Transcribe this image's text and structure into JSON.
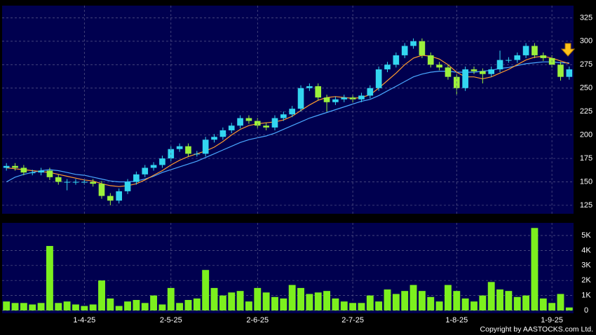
{
  "chart_data": [
    {
      "type": "candlestick",
      "open": [
        165,
        167,
        165,
        160,
        160,
        162,
        155,
        150,
        150,
        150,
        150,
        148,
        135,
        130,
        140,
        150,
        158,
        165,
        168,
        175,
        185,
        188,
        180,
        180,
        195,
        198,
        205,
        210,
        218,
        215,
        210,
        208,
        218,
        222,
        228,
        250,
        252,
        240,
        235,
        238,
        240,
        238,
        242,
        250,
        270,
        275,
        285,
        295,
        300,
        285,
        275,
        272,
        262,
        250,
        270,
        268,
        265,
        270,
        280,
        280,
        285,
        295,
        285,
        282,
        275,
        262
      ],
      "high": [
        170,
        170,
        168,
        163,
        165,
        165,
        158,
        153,
        153,
        153,
        153,
        151,
        138,
        143,
        153,
        161,
        168,
        171,
        178,
        188,
        191,
        191,
        183,
        198,
        201,
        208,
        213,
        221,
        221,
        218,
        213,
        221,
        225,
        231,
        253,
        255,
        255,
        243,
        241,
        243,
        243,
        245,
        253,
        273,
        278,
        288,
        298,
        303,
        303,
        288,
        278,
        275,
        265,
        273,
        273,
        271,
        273,
        290,
        283,
        288,
        298,
        298,
        288,
        285,
        278,
        273
      ],
      "low": [
        162,
        162,
        157,
        157,
        157,
        152,
        147,
        141,
        147,
        147,
        145,
        132,
        125,
        127,
        137,
        147,
        155,
        162,
        165,
        172,
        182,
        177,
        177,
        177,
        192,
        195,
        202,
        207,
        212,
        207,
        205,
        205,
        215,
        219,
        225,
        247,
        237,
        225,
        232,
        235,
        235,
        235,
        239,
        247,
        267,
        272,
        282,
        292,
        282,
        272,
        269,
        259,
        243,
        247,
        265,
        255,
        262,
        267,
        277,
        277,
        282,
        282,
        279,
        272,
        258,
        259
      ],
      "close": [
        167,
        165,
        160,
        160,
        162,
        155,
        150,
        150,
        150,
        150,
        148,
        135,
        130,
        140,
        150,
        158,
        165,
        168,
        175,
        185,
        188,
        180,
        180,
        195,
        198,
        205,
        210,
        218,
        215,
        210,
        208,
        218,
        222,
        228,
        250,
        252,
        240,
        235,
        238,
        240,
        238,
        242,
        250,
        270,
        275,
        285,
        295,
        300,
        285,
        275,
        272,
        262,
        250,
        270,
        268,
        265,
        270,
        280,
        280,
        285,
        295,
        285,
        282,
        275,
        262,
        270
      ],
      "up_color": "#33d6f0",
      "down_color": "#9cf03c",
      "lines": [
        {
          "color": "#4aa8ff",
          "values": [
            150,
            155,
            158,
            160,
            162,
            163,
            162,
            160,
            158,
            157,
            155,
            153,
            151,
            150,
            150,
            151,
            153,
            156,
            160,
            163,
            166,
            169,
            172,
            176,
            180,
            184,
            188,
            192,
            195,
            197,
            199,
            202,
            206,
            210,
            214,
            218,
            221,
            224,
            227,
            230,
            233,
            236,
            238,
            242,
            247,
            252,
            257,
            262,
            265,
            267,
            268,
            268,
            267,
            267,
            267,
            268,
            269,
            271,
            272,
            274,
            276,
            277,
            278,
            278,
            277,
            277
          ]
        },
        {
          "color": "#ff9a2e",
          "values": [
            165,
            164,
            163,
            162,
            161,
            160,
            158,
            156,
            154,
            152,
            151,
            148,
            146,
            145,
            146,
            148,
            152,
            157,
            162,
            168,
            173,
            177,
            180,
            183,
            187,
            193,
            200,
            206,
            210,
            212,
            213,
            214,
            216,
            220,
            226,
            232,
            237,
            240,
            241,
            240,
            239,
            240,
            243,
            250,
            258,
            266,
            275,
            282,
            285,
            284,
            281,
            275,
            267,
            262,
            262,
            260,
            262,
            266,
            270,
            275,
            280,
            283,
            284,
            282,
            279,
            276
          ]
        }
      ],
      "ylim": [
        116,
        338
      ],
      "yticks": [
        125,
        150,
        175,
        200,
        225,
        250,
        275,
        300,
        325
      ],
      "grid": true
    },
    {
      "type": "bar",
      "categories": [
        null,
        null,
        null,
        null,
        null,
        null,
        null,
        null,
        null,
        "1-4-25",
        null,
        null,
        null,
        null,
        null,
        null,
        null,
        null,
        null,
        "2-5-25",
        null,
        null,
        null,
        null,
        null,
        null,
        null,
        null,
        null,
        "2-6-25",
        null,
        null,
        null,
        null,
        null,
        null,
        null,
        null,
        null,
        null,
        "2-7-25",
        null,
        null,
        null,
        null,
        null,
        null,
        null,
        null,
        null,
        null,
        null,
        "1-8-25",
        null,
        null,
        null,
        null,
        null,
        null,
        null,
        null,
        null,
        null,
        "1-9-25",
        null,
        null
      ],
      "values": [
        0.6,
        0.5,
        0.5,
        0.4,
        0.5,
        4.3,
        0.5,
        0.6,
        0.4,
        0.3,
        0.4,
        2.0,
        0.8,
        0.3,
        0.6,
        0.7,
        0.5,
        1.0,
        0.4,
        1.5,
        0.5,
        0.7,
        0.8,
        2.7,
        1.5,
        1.0,
        1.2,
        1.3,
        0.6,
        1.5,
        1.2,
        0.9,
        0.8,
        1.7,
        1.5,
        1.1,
        1.2,
        1.3,
        0.8,
        0.6,
        0.5,
        0.5,
        1.0,
        0.6,
        1.4,
        1.1,
        1.3,
        1.7,
        1.3,
        0.9,
        0.6,
        1.7,
        1.3,
        0.8,
        0.6,
        1.0,
        1.9,
        1.4,
        1.3,
        0.9,
        1.0,
        5.5,
        0.8,
        0.5,
        1.1,
        0.2
      ],
      "color": "#7cf01e",
      "ylim": [
        0,
        5.84
      ],
      "yticks": [
        0,
        {
          "value": 1,
          "label": "1K"
        },
        {
          "value": 2,
          "label": "2K"
        },
        {
          "value": 3,
          "label": "3K"
        },
        {
          "value": 4,
          "label": "4K"
        },
        {
          "value": 5,
          "label": "5K"
        }
      ],
      "grid": true
    }
  ],
  "footer": {
    "copyright": "Copyright by AASTOCKS.com Ltd."
  }
}
